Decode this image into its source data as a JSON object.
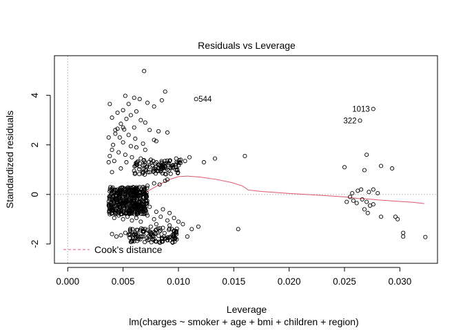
{
  "colors": {
    "smooth": "#DF536B",
    "points": "#000000",
    "refline": "#BEBEBE"
  },
  "chart_data": {
    "type": "scatter",
    "title": "Residuals vs Leverage",
    "xlabel": "Leverage",
    "ylabel": "Standardized residuals",
    "caption": "lm(charges ~ smoker + age + bmi + children + region)",
    "xlim": [
      -0.0012,
      0.0334
    ],
    "ylim": [
      -2.78,
      5.6
    ],
    "xticks": [
      0.0,
      0.005,
      0.01,
      0.015,
      0.02,
      0.025,
      0.03
    ],
    "xtick_labels": [
      "0.000",
      "0.005",
      "0.010",
      "0.015",
      "0.020",
      "0.025",
      "0.030"
    ],
    "yticks": [
      -2,
      0,
      2,
      4
    ],
    "ytick_labels": [
      "-2",
      "0",
      "2",
      "4"
    ],
    "reference_lines": {
      "h": 0,
      "v": 0
    },
    "legend": {
      "position": "bottom-left",
      "entries": [
        {
          "label": "Cook's distance",
          "style": "dashed"
        }
      ]
    },
    "annotations": [
      {
        "label": "544",
        "x": 0.0115,
        "y": 3.85
      },
      {
        "label": "1013",
        "x": 0.0276,
        "y": 3.45
      },
      {
        "label": "322",
        "x": 0.0264,
        "y": 2.98
      }
    ],
    "smooth_line": {
      "x": [
        0.0037,
        0.0045,
        0.0055,
        0.0065,
        0.0075,
        0.0085,
        0.0093,
        0.01,
        0.0108,
        0.012,
        0.0135,
        0.0148,
        0.0158,
        0.0163,
        0.0175,
        0.02,
        0.023,
        0.025,
        0.0262,
        0.027,
        0.028,
        0.0295,
        0.031,
        0.0322
      ],
      "y": [
        -0.42,
        -0.34,
        -0.22,
        -0.05,
        0.2,
        0.45,
        0.62,
        0.72,
        0.74,
        0.7,
        0.6,
        0.48,
        0.34,
        0.18,
        0.12,
        0.04,
        -0.04,
        -0.1,
        -0.16,
        -0.18,
        -0.22,
        -0.27,
        -0.31,
        -0.37
      ]
    },
    "points": [
      [
        0.0069,
        4.98
      ],
      [
        0.0088,
        4.15
      ],
      [
        0.006,
        3.9
      ],
      [
        0.0065,
        3.85
      ],
      [
        0.0085,
        3.8
      ],
      [
        0.0052,
        3.98
      ],
      [
        0.0038,
        3.65
      ],
      [
        0.0055,
        3.65
      ],
      [
        0.0072,
        3.7
      ],
      [
        0.0078,
        3.55
      ],
      [
        0.005,
        3.4
      ],
      [
        0.0062,
        3.35
      ],
      [
        0.0045,
        3.3
      ],
      [
        0.0057,
        3.2
      ],
      [
        0.004,
        3.1
      ],
      [
        0.0053,
        3.05
      ],
      [
        0.0066,
        3.0
      ],
      [
        0.007,
        2.9
      ],
      [
        0.0048,
        2.85
      ],
      [
        0.006,
        2.7
      ],
      [
        0.0045,
        2.65
      ],
      [
        0.0051,
        2.62
      ],
      [
        0.0074,
        2.6
      ],
      [
        0.0082,
        2.55
      ],
      [
        0.009,
        2.5
      ],
      [
        0.0043,
        2.45
      ],
      [
        0.0055,
        2.4
      ],
      [
        0.0047,
        2.3
      ],
      [
        0.0061,
        2.25
      ],
      [
        0.0078,
        2.2
      ],
      [
        0.008,
        2.15
      ],
      [
        0.0037,
        2.3
      ],
      [
        0.005,
        2.1
      ],
      [
        0.0068,
        2.05
      ],
      [
        0.0041,
        2.0
      ],
      [
        0.0057,
        1.95
      ],
      [
        0.0062,
        1.9
      ],
      [
        0.007,
        1.8
      ],
      [
        0.0046,
        1.7
      ],
      [
        0.0052,
        1.6
      ],
      [
        0.0038,
        1.55
      ],
      [
        0.0058,
        1.5
      ],
      [
        0.0066,
        1.45
      ],
      [
        0.0042,
        1.35
      ],
      [
        0.0053,
        1.3
      ],
      [
        0.0062,
        1.2
      ],
      [
        0.0072,
        1.15
      ],
      [
        0.0048,
        1.05
      ],
      [
        0.006,
        0.95
      ],
      [
        0.004,
        0.9
      ],
      [
        0.0075,
        1.4
      ],
      [
        0.008,
        1.3
      ],
      [
        0.0085,
        1.1
      ],
      [
        0.0089,
        1.25
      ],
      [
        0.0092,
        1.35
      ],
      [
        0.0095,
        1.1
      ],
      [
        0.0098,
        1.45
      ],
      [
        0.0101,
        1.3
      ],
      [
        0.007,
        1.0
      ],
      [
        0.0074,
        0.9
      ],
      [
        0.0078,
        1.05
      ],
      [
        0.0082,
        0.95
      ],
      [
        0.0086,
        1.2
      ],
      [
        0.009,
        1.0
      ],
      [
        0.0094,
        1.15
      ],
      [
        0.0102,
        1.4
      ],
      [
        0.0106,
        1.35
      ],
      [
        0.011,
        1.5
      ],
      [
        0.0123,
        1.3
      ],
      [
        0.0133,
        1.45
      ],
      [
        0.016,
        1.55
      ],
      [
        0.0116,
        3.85
      ],
      [
        0.0276,
        3.45
      ],
      [
        0.0264,
        2.98
      ],
      [
        0.025,
        1.1
      ],
      [
        0.0268,
        0.98
      ],
      [
        0.0283,
        1.15
      ],
      [
        0.0293,
        1.05
      ],
      [
        0.027,
        1.6
      ],
      [
        0.0257,
        0.05
      ],
      [
        0.0262,
        0.15
      ],
      [
        0.0265,
        0.2
      ],
      [
        0.0272,
        0.1
      ],
      [
        0.0276,
        0.2
      ],
      [
        0.028,
        0.05
      ],
      [
        0.0255,
        -0.1
      ],
      [
        0.0258,
        -0.25
      ],
      [
        0.0261,
        -0.35
      ],
      [
        0.0266,
        -0.2
      ],
      [
        0.027,
        -0.3
      ],
      [
        0.0273,
        -0.45
      ],
      [
        0.0276,
        -0.4
      ],
      [
        0.0252,
        -0.3
      ],
      [
        0.0268,
        -0.6
      ],
      [
        0.0271,
        -0.75
      ],
      [
        0.0283,
        -0.9
      ],
      [
        0.0296,
        -0.9
      ],
      [
        0.0298,
        -1.0
      ],
      [
        0.0303,
        -1.55
      ],
      [
        0.0303,
        -1.7
      ],
      [
        0.0323,
        -1.72
      ],
      [
        0.0154,
        -1.4
      ],
      [
        0.0112,
        -1.4
      ],
      [
        0.0118,
        -1.3
      ],
      [
        0.0108,
        -1.7
      ],
      [
        0.0098,
        -1.55
      ],
      [
        0.0095,
        -1.8
      ],
      [
        0.009,
        -1.85
      ],
      [
        0.0085,
        -1.75
      ],
      [
        0.008,
        -1.9
      ],
      [
        0.0076,
        -1.65
      ],
      [
        0.0072,
        -1.85
      ],
      [
        0.0068,
        -1.7
      ],
      [
        0.0064,
        -1.8
      ],
      [
        0.006,
        -1.6
      ],
      [
        0.0056,
        -1.75
      ],
      [
        0.0052,
        -1.55
      ],
      [
        0.0048,
        -1.65
      ],
      [
        0.0044,
        -1.7
      ],
      [
        0.004,
        -1.6
      ],
      [
        0.007,
        -1.4
      ],
      [
        0.0075,
        -1.3
      ],
      [
        0.008,
        -1.2
      ],
      [
        0.0086,
        -1.35
      ],
      [
        0.0092,
        -1.25
      ],
      [
        0.0066,
        -1.1
      ],
      [
        0.0062,
        -0.95
      ],
      [
        0.0058,
        -1.05
      ],
      [
        0.0054,
        -0.9
      ],
      [
        0.005,
        -1.0
      ],
      [
        0.0046,
        -0.85
      ],
      [
        0.0042,
        -0.95
      ],
      [
        0.0038,
        -0.8
      ],
      [
        0.0072,
        -0.85
      ],
      [
        0.0078,
        -1.0
      ],
      [
        0.0084,
        -0.9
      ],
      [
        0.009,
        -1.05
      ],
      [
        0.0096,
        -0.95
      ],
      [
        0.01,
        -1.1
      ],
      [
        0.0104,
        -1.2
      ],
      [
        0.007,
        -0.6
      ],
      [
        0.0074,
        -0.5
      ],
      [
        0.008,
        -0.7
      ],
      [
        0.0086,
        -0.6
      ],
      [
        0.0092,
        -0.75
      ],
      [
        0.0066,
        -0.45
      ],
      [
        0.006,
        -0.55
      ],
      [
        0.0056,
        -0.65
      ],
      [
        0.005,
        -0.7
      ],
      [
        0.0044,
        -0.6
      ],
      [
        0.004,
        -0.55
      ],
      [
        0.0037,
        -0.45
      ],
      [
        0.0083,
        0.4
      ],
      [
        0.0088,
        0.55
      ],
      [
        0.0078,
        0.45
      ],
      [
        0.0072,
        0.35
      ],
      [
        0.0068,
        0.3
      ],
      [
        0.0064,
        0.25
      ],
      [
        0.009,
        0.6
      ],
      [
        0.006,
        0.2
      ],
      [
        0.0056,
        0.15
      ],
      [
        0.0052,
        0.1
      ],
      [
        0.0048,
        0.05
      ],
      [
        0.0037,
        1.3
      ],
      [
        0.004,
        1.8
      ],
      [
        0.0043,
        2.6
      ],
      [
        0.005,
        2.7
      ]
    ],
    "cluster_main": {
      "xmin": 0.0037,
      "xmax": 0.0072,
      "ymin": -0.8,
      "ymax": 0.3,
      "count": 420
    },
    "cluster_band_top": {
      "xmin": 0.006,
      "xmax": 0.0102,
      "ymin": 0.8,
      "ymax": 1.4,
      "count": 90
    },
    "cluster_band_bottom": {
      "xmin": 0.0055,
      "xmax": 0.01,
      "ymin": -1.95,
      "ymax": -1.35,
      "count": 110
    }
  }
}
